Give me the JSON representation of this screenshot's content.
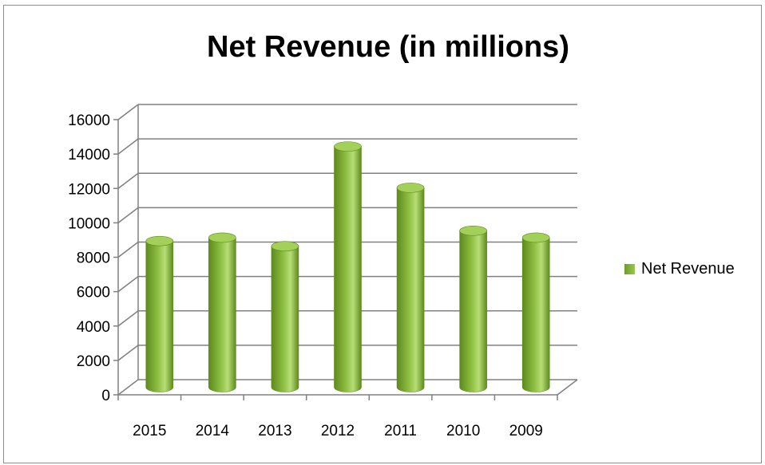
{
  "chart_data": {
    "type": "bar",
    "title": "Net Revenue (in millions)",
    "categories": [
      "2015",
      "2014",
      "2013",
      "2012",
      "2011",
      "2010",
      "2009"
    ],
    "series": [
      {
        "name": "Net Revenue",
        "values": [
          8500,
          8700,
          8200,
          14000,
          11600,
          9100,
          8700
        ]
      }
    ],
    "xlabel": "",
    "ylabel": "",
    "ylim": [
      0,
      16000
    ],
    "yticks": [
      0,
      2000,
      4000,
      6000,
      8000,
      10000,
      12000,
      14000,
      16000
    ],
    "grid": true,
    "style": "3d-cylinder",
    "legend": "right",
    "colors": {
      "bar_dark": "#5e8a1e",
      "bar_mid": "#8fc043",
      "bar_light": "#b7de76",
      "bar_top": "#a3d058",
      "grid": "#808080",
      "axis": "#808080"
    }
  }
}
